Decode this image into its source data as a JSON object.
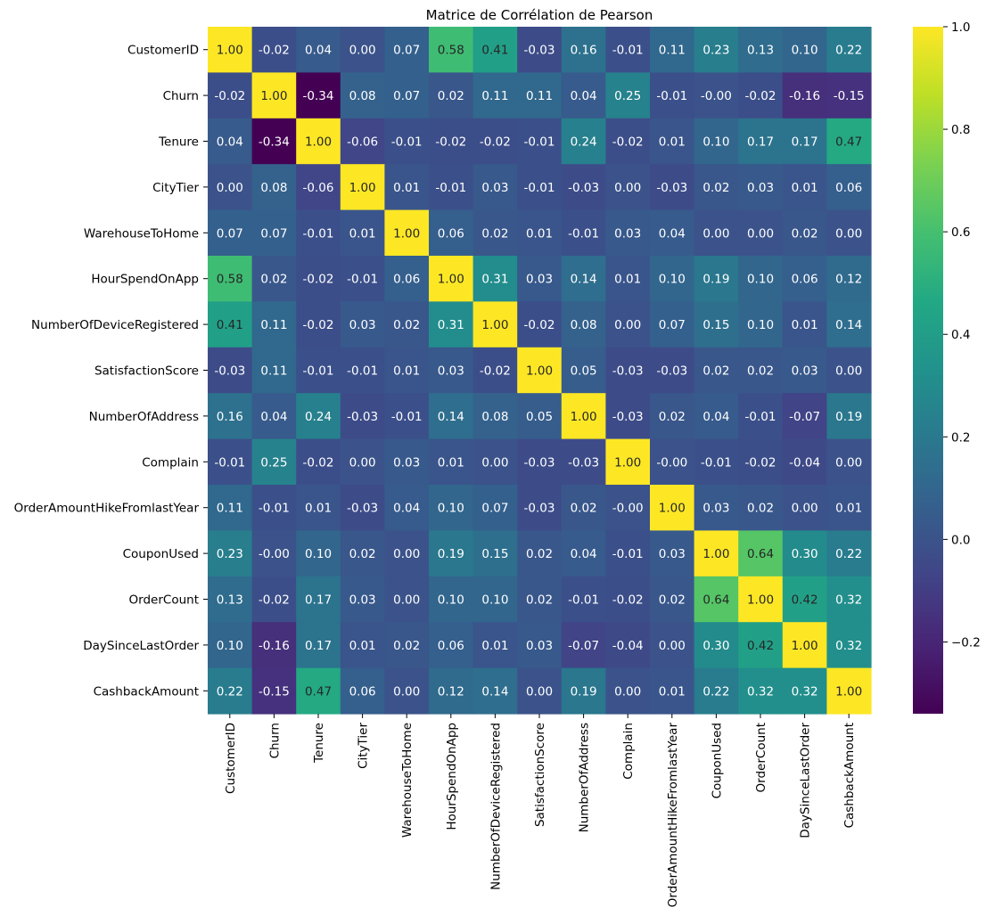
{
  "chart_data": {
    "type": "heatmap",
    "title": "Matrice de Corrélation de Pearson",
    "xlabel": "",
    "ylabel": "",
    "colormap": "viridis",
    "value_format": "2 decimals",
    "color_range": [
      -0.34,
      1.0
    ],
    "colorbar_ticks": [
      -0.2,
      0.0,
      0.2,
      0.4,
      0.6,
      0.8,
      1.0
    ],
    "colorbar_tick_labels": [
      "−0.2",
      "0.0",
      "0.2",
      "0.4",
      "0.6",
      "0.8",
      "1.0"
    ],
    "colorbar_placement": "right",
    "grid": false,
    "x_labels": [
      "CustomerID",
      "Churn",
      "Tenure",
      "CityTier",
      "WarehouseToHome",
      "HourSpendOnApp",
      "NumberOfDeviceRegistered",
      "SatisfactionScore",
      "NumberOfAddress",
      "Complain",
      "OrderAmountHikeFromlastYear",
      "CouponUsed",
      "OrderCount",
      "DaySinceLastOrder",
      "CashbackAmount"
    ],
    "y_labels": [
      "CustomerID",
      "Churn",
      "Tenure",
      "CityTier",
      "WarehouseToHome",
      "HourSpendOnApp",
      "NumberOfDeviceRegistered",
      "SatisfactionScore",
      "NumberOfAddress",
      "Complain",
      "OrderAmountHikeFromlastYear",
      "CouponUsed",
      "OrderCount",
      "DaySinceLastOrder",
      "CashbackAmount"
    ],
    "values": [
      [
        1.0,
        -0.02,
        0.04,
        0.0,
        0.07,
        0.58,
        0.41,
        -0.03,
        0.16,
        -0.01,
        0.11,
        0.23,
        0.13,
        0.1,
        0.22
      ],
      [
        -0.02,
        1.0,
        -0.34,
        0.08,
        0.07,
        0.02,
        0.11,
        0.11,
        0.04,
        0.25,
        -0.01,
        -0.0,
        -0.02,
        -0.16,
        -0.15
      ],
      [
        0.04,
        -0.34,
        1.0,
        -0.06,
        -0.01,
        -0.02,
        -0.02,
        -0.01,
        0.24,
        -0.02,
        0.01,
        0.1,
        0.17,
        0.17,
        0.47
      ],
      [
        0.0,
        0.08,
        -0.06,
        1.0,
        0.01,
        -0.01,
        0.03,
        -0.01,
        -0.03,
        0.0,
        -0.03,
        0.02,
        0.03,
        0.01,
        0.06
      ],
      [
        0.07,
        0.07,
        -0.01,
        0.01,
        1.0,
        0.06,
        0.02,
        0.01,
        -0.01,
        0.03,
        0.04,
        0.0,
        0.0,
        0.02,
        0.0
      ],
      [
        0.58,
        0.02,
        -0.02,
        -0.01,
        0.06,
        1.0,
        0.31,
        0.03,
        0.14,
        0.01,
        0.1,
        0.19,
        0.1,
        0.06,
        0.12
      ],
      [
        0.41,
        0.11,
        -0.02,
        0.03,
        0.02,
        0.31,
        1.0,
        -0.02,
        0.08,
        0.0,
        0.07,
        0.15,
        0.1,
        0.01,
        0.14
      ],
      [
        -0.03,
        0.11,
        -0.01,
        -0.01,
        0.01,
        0.03,
        -0.02,
        1.0,
        0.05,
        -0.03,
        -0.03,
        0.02,
        0.02,
        0.03,
        0.0
      ],
      [
        0.16,
        0.04,
        0.24,
        -0.03,
        -0.01,
        0.14,
        0.08,
        0.05,
        1.0,
        -0.03,
        0.02,
        0.04,
        -0.01,
        -0.07,
        0.19
      ],
      [
        -0.01,
        0.25,
        -0.02,
        0.0,
        0.03,
        0.01,
        0.0,
        -0.03,
        -0.03,
        1.0,
        -0.0,
        -0.01,
        -0.02,
        -0.04,
        0.0
      ],
      [
        0.11,
        -0.01,
        0.01,
        -0.03,
        0.04,
        0.1,
        0.07,
        -0.03,
        0.02,
        -0.0,
        1.0,
        0.03,
        0.02,
        0.0,
        0.01
      ],
      [
        0.23,
        -0.0,
        0.1,
        0.02,
        0.0,
        0.19,
        0.15,
        0.02,
        0.04,
        -0.01,
        0.03,
        1.0,
        0.64,
        0.3,
        0.22
      ],
      [
        0.13,
        -0.02,
        0.17,
        0.03,
        0.0,
        0.1,
        0.1,
        0.02,
        -0.01,
        -0.02,
        0.02,
        0.64,
        1.0,
        0.42,
        0.32
      ],
      [
        0.1,
        -0.16,
        0.17,
        0.01,
        0.02,
        0.06,
        0.01,
        0.03,
        -0.07,
        -0.04,
        0.0,
        0.3,
        0.42,
        1.0,
        0.32
      ],
      [
        0.22,
        -0.15,
        0.47,
        0.06,
        0.0,
        0.12,
        0.14,
        0.0,
        0.19,
        0.0,
        0.01,
        0.22,
        0.32,
        0.32,
        1.0
      ]
    ]
  }
}
